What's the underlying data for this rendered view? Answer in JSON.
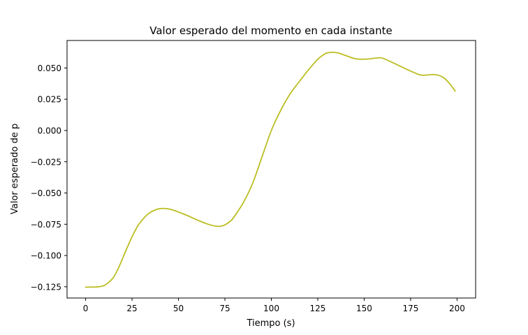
{
  "chart_data": {
    "type": "line",
    "title": "Valor esperado del momento en cada instante",
    "xlabel": "Tiempo (s)",
    "ylabel": "Valor esperado de p",
    "xlim": [
      -10,
      210
    ],
    "ylim": [
      -0.134,
      0.072
    ],
    "x_ticks": [
      0,
      25,
      50,
      75,
      100,
      125,
      150,
      175,
      200
    ],
    "x_tick_labels": [
      "0",
      "25",
      "50",
      "75",
      "100",
      "125",
      "150",
      "175",
      "200"
    ],
    "y_ticks": [
      -0.125,
      -0.1,
      -0.075,
      -0.05,
      -0.025,
      0.0,
      0.025,
      0.05
    ],
    "y_tick_labels": [
      "−0.125",
      "−0.100",
      "−0.075",
      "−0.050",
      "−0.025",
      "0.000",
      "0.025",
      "0.050"
    ],
    "grid": false,
    "legend": "none",
    "series": [
      {
        "color": "#bcbd22",
        "x": [
          0,
          5,
          8,
          10,
          12,
          15,
          18,
          20,
          22,
          25,
          28,
          30,
          33,
          36,
          40,
          45,
          50,
          55,
          60,
          65,
          70,
          73,
          75,
          78,
          80,
          85,
          90,
          95,
          100,
          105,
          110,
          115,
          120,
          125,
          128,
          130,
          133,
          136,
          140,
          145,
          150,
          155,
          158,
          160,
          165,
          170,
          175,
          180,
          183,
          187,
          190,
          193,
          196,
          199
        ],
        "y": [
          -0.1253,
          -0.1252,
          -0.1248,
          -0.124,
          -0.122,
          -0.1175,
          -0.109,
          -0.102,
          -0.095,
          -0.085,
          -0.0765,
          -0.0725,
          -0.0675,
          -0.0645,
          -0.0625,
          -0.0628,
          -0.0652,
          -0.0682,
          -0.0715,
          -0.0745,
          -0.0765,
          -0.0765,
          -0.0755,
          -0.0725,
          -0.069,
          -0.0575,
          -0.042,
          -0.021,
          0.0,
          0.016,
          0.029,
          0.039,
          0.0485,
          0.057,
          0.0605,
          0.062,
          0.0625,
          0.062,
          0.06,
          0.0575,
          0.057,
          0.0577,
          0.0582,
          0.0578,
          0.0545,
          0.051,
          0.0475,
          0.0445,
          0.0443,
          0.0447,
          0.0442,
          0.042,
          0.0375,
          0.0315
        ]
      }
    ]
  }
}
